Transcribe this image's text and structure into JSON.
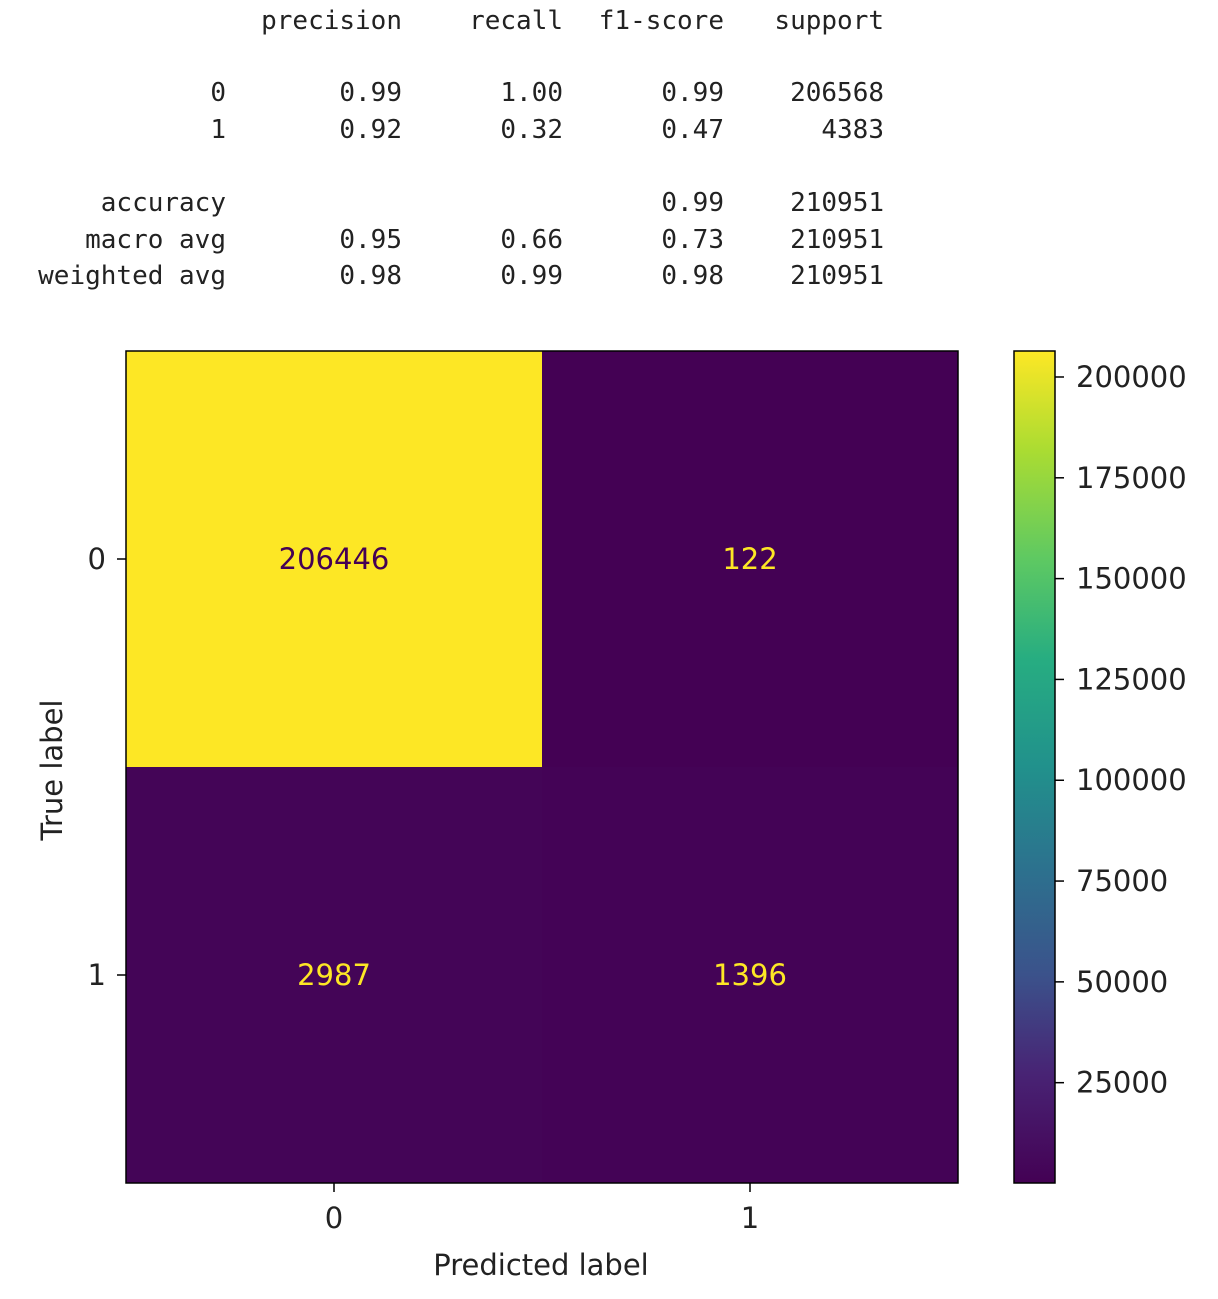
{
  "report": {
    "headers": [
      "precision",
      "recall",
      "f1-score",
      "support"
    ],
    "rows": [
      {
        "label": "0",
        "precision": "0.99",
        "recall": "1.00",
        "f1": "0.99",
        "support": "206568"
      },
      {
        "label": "1",
        "precision": "0.92",
        "recall": "0.32",
        "f1": "0.47",
        "support": "4383"
      },
      {
        "label": "accuracy",
        "precision": "",
        "recall": "",
        "f1": "0.99",
        "support": "210951"
      },
      {
        "label": "macro avg",
        "precision": "0.95",
        "recall": "0.66",
        "f1": "0.73",
        "support": "210951"
      },
      {
        "label": "weighted avg",
        "precision": "0.98",
        "recall": "0.99",
        "f1": "0.98",
        "support": "210951"
      }
    ]
  },
  "chart_data": {
    "type": "heatmap",
    "x_categories": [
      "0",
      "1"
    ],
    "y_categories": [
      "0",
      "1"
    ],
    "values": [
      [
        206446,
        122
      ],
      [
        2987,
        1396
      ]
    ],
    "xlabel": "Predicted label",
    "ylabel": "True label",
    "colormap": "viridis",
    "colorbar": {
      "ticks": [
        25000,
        50000,
        75000,
        100000,
        125000,
        150000,
        175000,
        200000
      ],
      "range": [
        122,
        206446
      ]
    },
    "annotation_colors": {
      "on_dark": "#fde725",
      "on_light": "#440154"
    }
  }
}
